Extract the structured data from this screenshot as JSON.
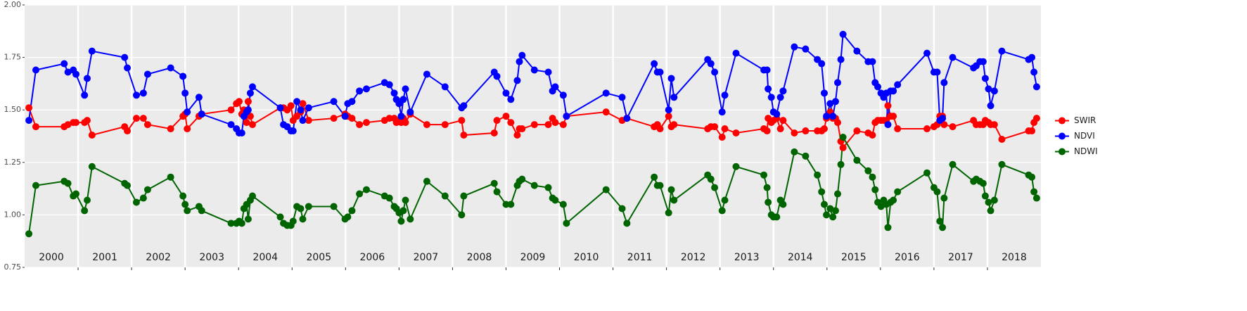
{
  "chart_data": {
    "type": "line",
    "x": [
      2000.08,
      2000.21,
      2000.74,
      2000.81,
      2000.91,
      2000.96,
      2001.12,
      2001.17,
      2001.26,
      2001.87,
      2001.92,
      2002.09,
      2002.22,
      2002.3,
      2002.73,
      2002.96,
      2003.0,
      2003.04,
      2003.26,
      2003.31,
      2003.86,
      2003.96,
      2004.01,
      2004.06,
      2004.1,
      2004.15,
      2004.18,
      2004.22,
      2004.26,
      2004.78,
      2004.84,
      2004.91,
      2004.98,
      2005.02,
      2005.09,
      2005.16,
      2005.2,
      2005.31,
      2005.78,
      2005.99,
      2006.04,
      2006.12,
      2006.26,
      2006.39,
      2006.73,
      2006.82,
      2006.91,
      2006.95,
      2007.0,
      2007.04,
      2007.08,
      2007.12,
      2007.21,
      2007.52,
      2007.86,
      2008.17,
      2008.21,
      2008.78,
      2008.83,
      2009.0,
      2009.09,
      2009.21,
      2009.25,
      2009.3,
      2009.53,
      2009.79,
      2009.87,
      2009.92,
      2010.07,
      2010.13,
      2010.87,
      2011.17,
      2011.26,
      2011.77,
      2011.83,
      2011.88,
      2012.04,
      2012.09,
      2012.14,
      2012.77,
      2012.83,
      2012.9,
      2013.04,
      2013.09,
      2013.3,
      2013.82,
      2013.88,
      2013.9,
      2013.96,
      2014.0,
      2014.06,
      2014.13,
      2014.18,
      2014.39,
      2014.6,
      2014.82,
      2014.9,
      2014.95,
      2014.99,
      2015.06,
      2015.11,
      2015.16,
      2015.2,
      2015.26,
      2015.3,
      2015.56,
      2015.77,
      2015.85,
      2015.9,
      2015.95,
      2016.01,
      2016.06,
      2016.11,
      2016.14,
      2016.19,
      2016.24,
      2016.32,
      2016.87,
      2017.0,
      2017.06,
      2017.11,
      2017.16,
      2017.19,
      2017.35,
      2017.74,
      2017.79,
      2017.86,
      2017.92,
      2017.96,
      2018.02,
      2018.06,
      2018.13,
      2018.27,
      2018.77,
      2018.83,
      2018.87,
      2018.92
    ],
    "series": [
      {
        "name": "SWIR",
        "color": "#ff0000",
        "values": [
          1.51,
          1.42,
          1.42,
          1.43,
          1.44,
          1.44,
          1.44,
          1.45,
          1.38,
          1.42,
          1.4,
          1.46,
          1.46,
          1.43,
          1.41,
          1.47,
          1.48,
          1.41,
          1.47,
          1.48,
          1.5,
          1.53,
          1.54,
          1.48,
          1.5,
          1.44,
          1.54,
          1.47,
          1.43,
          1.51,
          1.51,
          1.5,
          1.52,
          1.45,
          1.47,
          1.49,
          1.53,
          1.45,
          1.46,
          1.48,
          1.47,
          1.46,
          1.43,
          1.44,
          1.45,
          1.46,
          1.46,
          1.44,
          1.45,
          1.44,
          1.46,
          1.44,
          1.48,
          1.43,
          1.43,
          1.45,
          1.38,
          1.39,
          1.45,
          1.47,
          1.44,
          1.38,
          1.41,
          1.41,
          1.43,
          1.43,
          1.46,
          1.44,
          1.43,
          1.47,
          1.49,
          1.45,
          1.46,
          1.42,
          1.43,
          1.41,
          1.47,
          1.42,
          1.43,
          1.41,
          1.42,
          1.42,
          1.37,
          1.41,
          1.39,
          1.41,
          1.4,
          1.46,
          1.44,
          1.45,
          1.46,
          1.41,
          1.45,
          1.39,
          1.4,
          1.4,
          1.4,
          1.41,
          1.46,
          1.49,
          1.46,
          1.46,
          1.44,
          1.35,
          1.32,
          1.4,
          1.39,
          1.38,
          1.44,
          1.45,
          1.45,
          1.45,
          1.45,
          1.52,
          1.47,
          1.47,
          1.41,
          1.41,
          1.42,
          1.43,
          1.47,
          1.47,
          1.43,
          1.42,
          1.45,
          1.43,
          1.43,
          1.43,
          1.45,
          1.44,
          1.43,
          1.43,
          1.36,
          1.4,
          1.4,
          1.44,
          1.46
        ]
      },
      {
        "name": "NDVI",
        "color": "#0000ff",
        "values": [
          1.45,
          1.69,
          1.72,
          1.68,
          1.69,
          1.67,
          1.57,
          1.65,
          1.78,
          1.75,
          1.7,
          1.57,
          1.58,
          1.67,
          1.7,
          1.66,
          1.58,
          1.49,
          1.56,
          1.48,
          1.43,
          1.41,
          1.39,
          1.39,
          1.47,
          1.49,
          1.5,
          1.58,
          1.61,
          1.51,
          1.43,
          1.42,
          1.4,
          1.4,
          1.54,
          1.5,
          1.45,
          1.51,
          1.54,
          1.47,
          1.53,
          1.54,
          1.59,
          1.6,
          1.63,
          1.62,
          1.58,
          1.55,
          1.53,
          1.47,
          1.55,
          1.6,
          1.49,
          1.67,
          1.61,
          1.51,
          1.52,
          1.68,
          1.66,
          1.58,
          1.55,
          1.64,
          1.73,
          1.76,
          1.69,
          1.68,
          1.59,
          1.61,
          1.57,
          1.47,
          1.58,
          1.56,
          1.46,
          1.72,
          1.68,
          1.68,
          1.5,
          1.65,
          1.56,
          1.74,
          1.72,
          1.68,
          1.49,
          1.57,
          1.77,
          1.69,
          1.69,
          1.6,
          1.56,
          1.49,
          1.48,
          1.56,
          1.59,
          1.8,
          1.79,
          1.74,
          1.72,
          1.58,
          1.47,
          1.53,
          1.47,
          1.54,
          1.63,
          1.74,
          1.86,
          1.78,
          1.73,
          1.73,
          1.63,
          1.61,
          1.58,
          1.56,
          1.58,
          1.43,
          1.59,
          1.59,
          1.62,
          1.77,
          1.68,
          1.68,
          1.45,
          1.46,
          1.63,
          1.75,
          1.7,
          1.71,
          1.73,
          1.73,
          1.65,
          1.6,
          1.52,
          1.59,
          1.78,
          1.74,
          1.75,
          1.68,
          1.61
        ]
      },
      {
        "name": "NDWI",
        "color": "#006400",
        "values": [
          0.91,
          1.14,
          1.16,
          1.15,
          1.09,
          1.1,
          1.02,
          1.07,
          1.23,
          1.15,
          1.14,
          1.06,
          1.08,
          1.12,
          1.18,
          1.09,
          1.05,
          1.02,
          1.04,
          1.02,
          0.96,
          0.96,
          0.97,
          0.96,
          1.03,
          1.05,
          0.98,
          1.07,
          1.09,
          0.99,
          0.96,
          0.95,
          0.95,
          0.97,
          1.04,
          1.03,
          0.98,
          1.04,
          1.04,
          0.98,
          0.99,
          1.02,
          1.1,
          1.12,
          1.09,
          1.08,
          1.04,
          1.03,
          1.01,
          0.97,
          1.02,
          1.07,
          0.98,
          1.16,
          1.09,
          1.0,
          1.09,
          1.15,
          1.11,
          1.05,
          1.05,
          1.14,
          1.16,
          1.17,
          1.14,
          1.13,
          1.08,
          1.07,
          1.05,
          0.96,
          1.12,
          1.03,
          0.96,
          1.18,
          1.14,
          1.14,
          1.01,
          1.12,
          1.07,
          1.19,
          1.17,
          1.13,
          1.02,
          1.07,
          1.23,
          1.19,
          1.13,
          1.06,
          1.0,
          0.99,
          0.99,
          1.07,
          1.05,
          1.3,
          1.28,
          1.19,
          1.11,
          1.05,
          1.0,
          1.03,
          0.99,
          1.02,
          1.1,
          1.24,
          1.37,
          1.26,
          1.21,
          1.18,
          1.12,
          1.06,
          1.04,
          1.07,
          1.05,
          0.94,
          1.06,
          1.07,
          1.11,
          1.2,
          1.13,
          1.11,
          0.97,
          0.94,
          1.08,
          1.24,
          1.16,
          1.17,
          1.16,
          1.15,
          1.09,
          1.06,
          1.02,
          1.07,
          1.24,
          1.19,
          1.18,
          1.11,
          1.08
        ]
      }
    ],
    "xlim": [
      2000,
      2019
    ],
    "xticks": [
      {
        "value": 2000.5,
        "label": "2000"
      },
      {
        "value": 2001.5,
        "label": "2001"
      },
      {
        "value": 2002.5,
        "label": "2002"
      },
      {
        "value": 2003.5,
        "label": "2003"
      },
      {
        "value": 2004.5,
        "label": "2004"
      },
      {
        "value": 2005.5,
        "label": "2005"
      },
      {
        "value": 2006.5,
        "label": "2006"
      },
      {
        "value": 2007.5,
        "label": "2007"
      },
      {
        "value": 2008.5,
        "label": "2008"
      },
      {
        "value": 2009.5,
        "label": "2009"
      },
      {
        "value": 2010.5,
        "label": "2010"
      },
      {
        "value": 2011.5,
        "label": "2011"
      },
      {
        "value": 2012.5,
        "label": "2012"
      },
      {
        "value": 2013.5,
        "label": "2013"
      },
      {
        "value": 2014.5,
        "label": "2014"
      },
      {
        "value": 2015.5,
        "label": "2015"
      },
      {
        "value": 2016.5,
        "label": "2016"
      },
      {
        "value": 2017.5,
        "label": "2017"
      },
      {
        "value": 2018.5,
        "label": "2018"
      }
    ],
    "ylim": [
      0.75,
      2.0
    ],
    "yticks": [
      {
        "value": 0.75,
        "label": "0.75"
      },
      {
        "value": 1.0,
        "label": "1.00"
      },
      {
        "value": 1.25,
        "label": "1.25"
      },
      {
        "value": 1.5,
        "label": "1.50"
      },
      {
        "value": 1.75,
        "label": "1.75"
      },
      {
        "value": 2.0,
        "label": "2.00"
      }
    ],
    "grid": true,
    "legend": "right"
  }
}
